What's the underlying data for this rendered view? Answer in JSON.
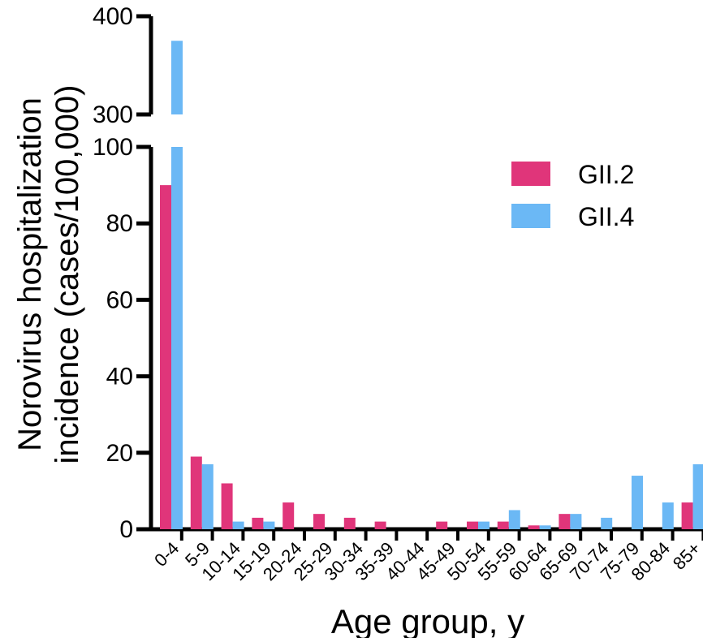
{
  "chart_data": {
    "type": "bar",
    "xlabel": "Age group, y",
    "ylabel_lines": [
      "Norovirus hospitalization",
      "incidence (cases/100,000)"
    ],
    "categories": [
      "0-4",
      "5-9",
      "10-14",
      "15-19",
      "20-24",
      "25-29",
      "30-34",
      "35-39",
      "40-44",
      "45-49",
      "50-54",
      "55-59",
      "60-64",
      "65-69",
      "70-74",
      "75-79",
      "80-84",
      "85+"
    ],
    "series": [
      {
        "name": "GII.2",
        "color": "#e0357a",
        "values": [
          90,
          19,
          12,
          3,
          7,
          4,
          3,
          2,
          0,
          2,
          2,
          2,
          1,
          4,
          0,
          0,
          0,
          7
        ]
      },
      {
        "name": "GII.4",
        "color": "#6bb8f5",
        "values": [
          375,
          17,
          2,
          2,
          0,
          0,
          0,
          0,
          0,
          0,
          2,
          5,
          1,
          4,
          3,
          14,
          7,
          17
        ]
      }
    ],
    "y_axis_broken": true,
    "ylim_lower": [
      0,
      100
    ],
    "ylim_upper": [
      300,
      400
    ],
    "yticks_lower": [
      "0",
      "20",
      "40",
      "60",
      "80",
      "100"
    ],
    "yticks_upper": [
      "300",
      "400"
    ],
    "legend_position": "top-right",
    "grid": false
  }
}
